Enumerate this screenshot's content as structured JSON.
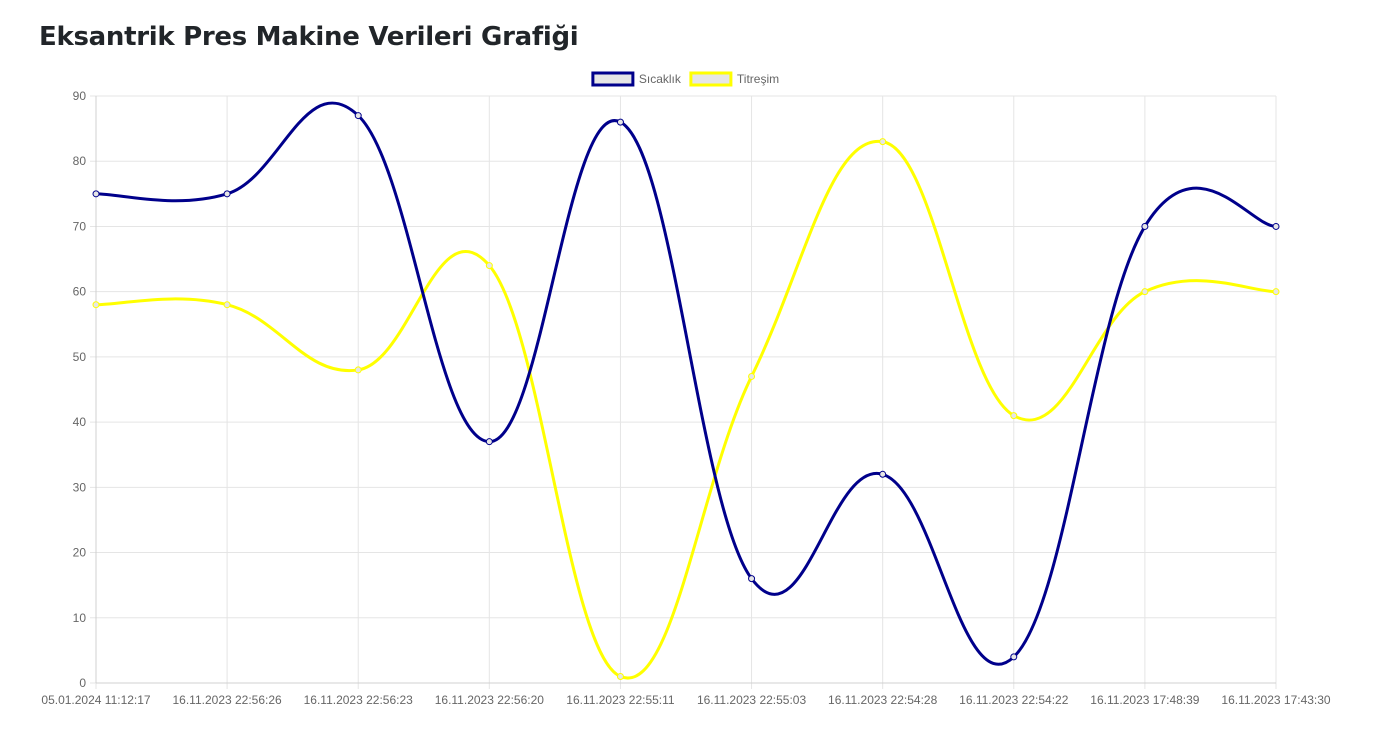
{
  "page": {
    "title": "Eksantrik Pres Makine Verileri Grafiği"
  },
  "chart_data": {
    "type": "line",
    "title": "",
    "xlabel": "",
    "ylabel": "",
    "categories": [
      "05.01.2024 11:12:17",
      "16.11.2023 22:56:26",
      "16.11.2023 22:56:23",
      "16.11.2023 22:56:20",
      "16.11.2023 22:55:11",
      "16.11.2023 22:55:03",
      "16.11.2023 22:54:28",
      "16.11.2023 22:54:22",
      "16.11.2023 17:48:39",
      "16.11.2023 17:43:30"
    ],
    "ylim": [
      0,
      90
    ],
    "yticks": [
      0,
      10,
      20,
      30,
      40,
      50,
      60,
      70,
      80,
      90
    ],
    "grid": true,
    "smooth": true,
    "legend_position": "top-center",
    "series": [
      {
        "name": "Sıcaklık",
        "color": "#00008b",
        "fill": "#e6e6e6",
        "values": [
          75,
          75,
          87,
          37,
          86,
          16,
          32,
          4,
          70,
          70
        ]
      },
      {
        "name": "Titreşim",
        "color": "#ffff00",
        "fill": "#e6e6e6",
        "values": [
          58,
          58,
          48,
          64,
          1,
          47,
          83,
          41,
          60,
          60
        ]
      }
    ]
  }
}
